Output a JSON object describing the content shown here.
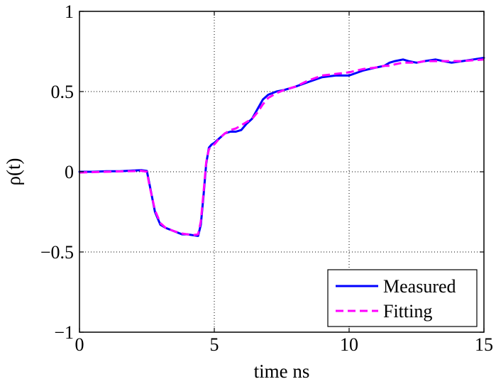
{
  "chart_data": {
    "type": "line",
    "xlabel": "time ns",
    "ylabel": "ρ(t)",
    "xlim": [
      0,
      15
    ],
    "ylim": [
      -1,
      1
    ],
    "xticks": [
      0,
      5,
      10,
      15
    ],
    "xtick_labels": [
      "0",
      "5",
      "10",
      "15"
    ],
    "yticks": [
      -1,
      -0.5,
      0,
      0.5,
      1
    ],
    "ytick_labels": [
      "−1",
      "−0.5",
      "0",
      "0.5",
      "1"
    ],
    "grid": true,
    "legend_position": "bottom-right",
    "series": [
      {
        "name": "Measured",
        "color": "#0000ff",
        "style": "solid",
        "x": [
          0,
          0.5,
          1.0,
          1.5,
          2.0,
          2.3,
          2.5,
          2.6,
          2.8,
          3.0,
          3.2,
          3.5,
          3.8,
          4.0,
          4.2,
          4.4,
          4.5,
          4.6,
          4.7,
          4.8,
          4.9,
          5.0,
          5.2,
          5.4,
          5.6,
          5.8,
          6.0,
          6.2,
          6.4,
          6.6,
          6.8,
          7.0,
          7.3,
          7.6,
          8.0,
          8.5,
          9.0,
          9.5,
          10.0,
          10.5,
          11.0,
          11.3,
          11.5,
          11.7,
          12.0,
          12.2,
          12.5,
          12.8,
          13.2,
          13.5,
          13.8,
          14.2,
          14.6,
          15.0
        ],
        "y": [
          0.0,
          0.0,
          0.003,
          0.003,
          0.008,
          0.01,
          0.005,
          -0.08,
          -0.25,
          -0.33,
          -0.35,
          -0.37,
          -0.39,
          -0.39,
          -0.395,
          -0.4,
          -0.33,
          -0.15,
          0.05,
          0.15,
          0.17,
          0.18,
          0.21,
          0.24,
          0.25,
          0.25,
          0.26,
          0.3,
          0.33,
          0.39,
          0.45,
          0.48,
          0.5,
          0.51,
          0.53,
          0.56,
          0.59,
          0.6,
          0.6,
          0.63,
          0.65,
          0.66,
          0.68,
          0.69,
          0.7,
          0.69,
          0.68,
          0.69,
          0.7,
          0.69,
          0.68,
          0.69,
          0.7,
          0.71
        ]
      },
      {
        "name": "Fitting",
        "color": "#ff00ff",
        "style": "dashed",
        "x": [
          0,
          0.5,
          1.0,
          1.5,
          2.0,
          2.3,
          2.5,
          2.6,
          2.8,
          3.0,
          3.2,
          3.5,
          3.8,
          4.0,
          4.2,
          4.4,
          4.5,
          4.6,
          4.7,
          4.8,
          4.9,
          5.0,
          5.2,
          5.4,
          5.6,
          5.8,
          6.0,
          6.2,
          6.4,
          6.6,
          6.8,
          7.0,
          7.3,
          7.6,
          8.0,
          8.5,
          9.0,
          9.5,
          10.0,
          10.5,
          11.0,
          11.3,
          11.5,
          11.7,
          12.0,
          12.2,
          12.5,
          12.8,
          13.2,
          13.5,
          13.8,
          14.2,
          14.6,
          15.0
        ],
        "y": [
          -0.005,
          -0.002,
          0.0,
          0.002,
          0.004,
          0.006,
          0.0,
          -0.09,
          -0.24,
          -0.32,
          -0.35,
          -0.37,
          -0.385,
          -0.39,
          -0.395,
          -0.39,
          -0.31,
          -0.13,
          0.06,
          0.14,
          0.16,
          0.17,
          0.21,
          0.24,
          0.26,
          0.27,
          0.29,
          0.31,
          0.33,
          0.37,
          0.42,
          0.46,
          0.49,
          0.51,
          0.53,
          0.57,
          0.6,
          0.61,
          0.62,
          0.64,
          0.65,
          0.66,
          0.66,
          0.67,
          0.68,
          0.68,
          0.68,
          0.69,
          0.69,
          0.69,
          0.69,
          0.69,
          0.695,
          0.7
        ]
      }
    ]
  }
}
